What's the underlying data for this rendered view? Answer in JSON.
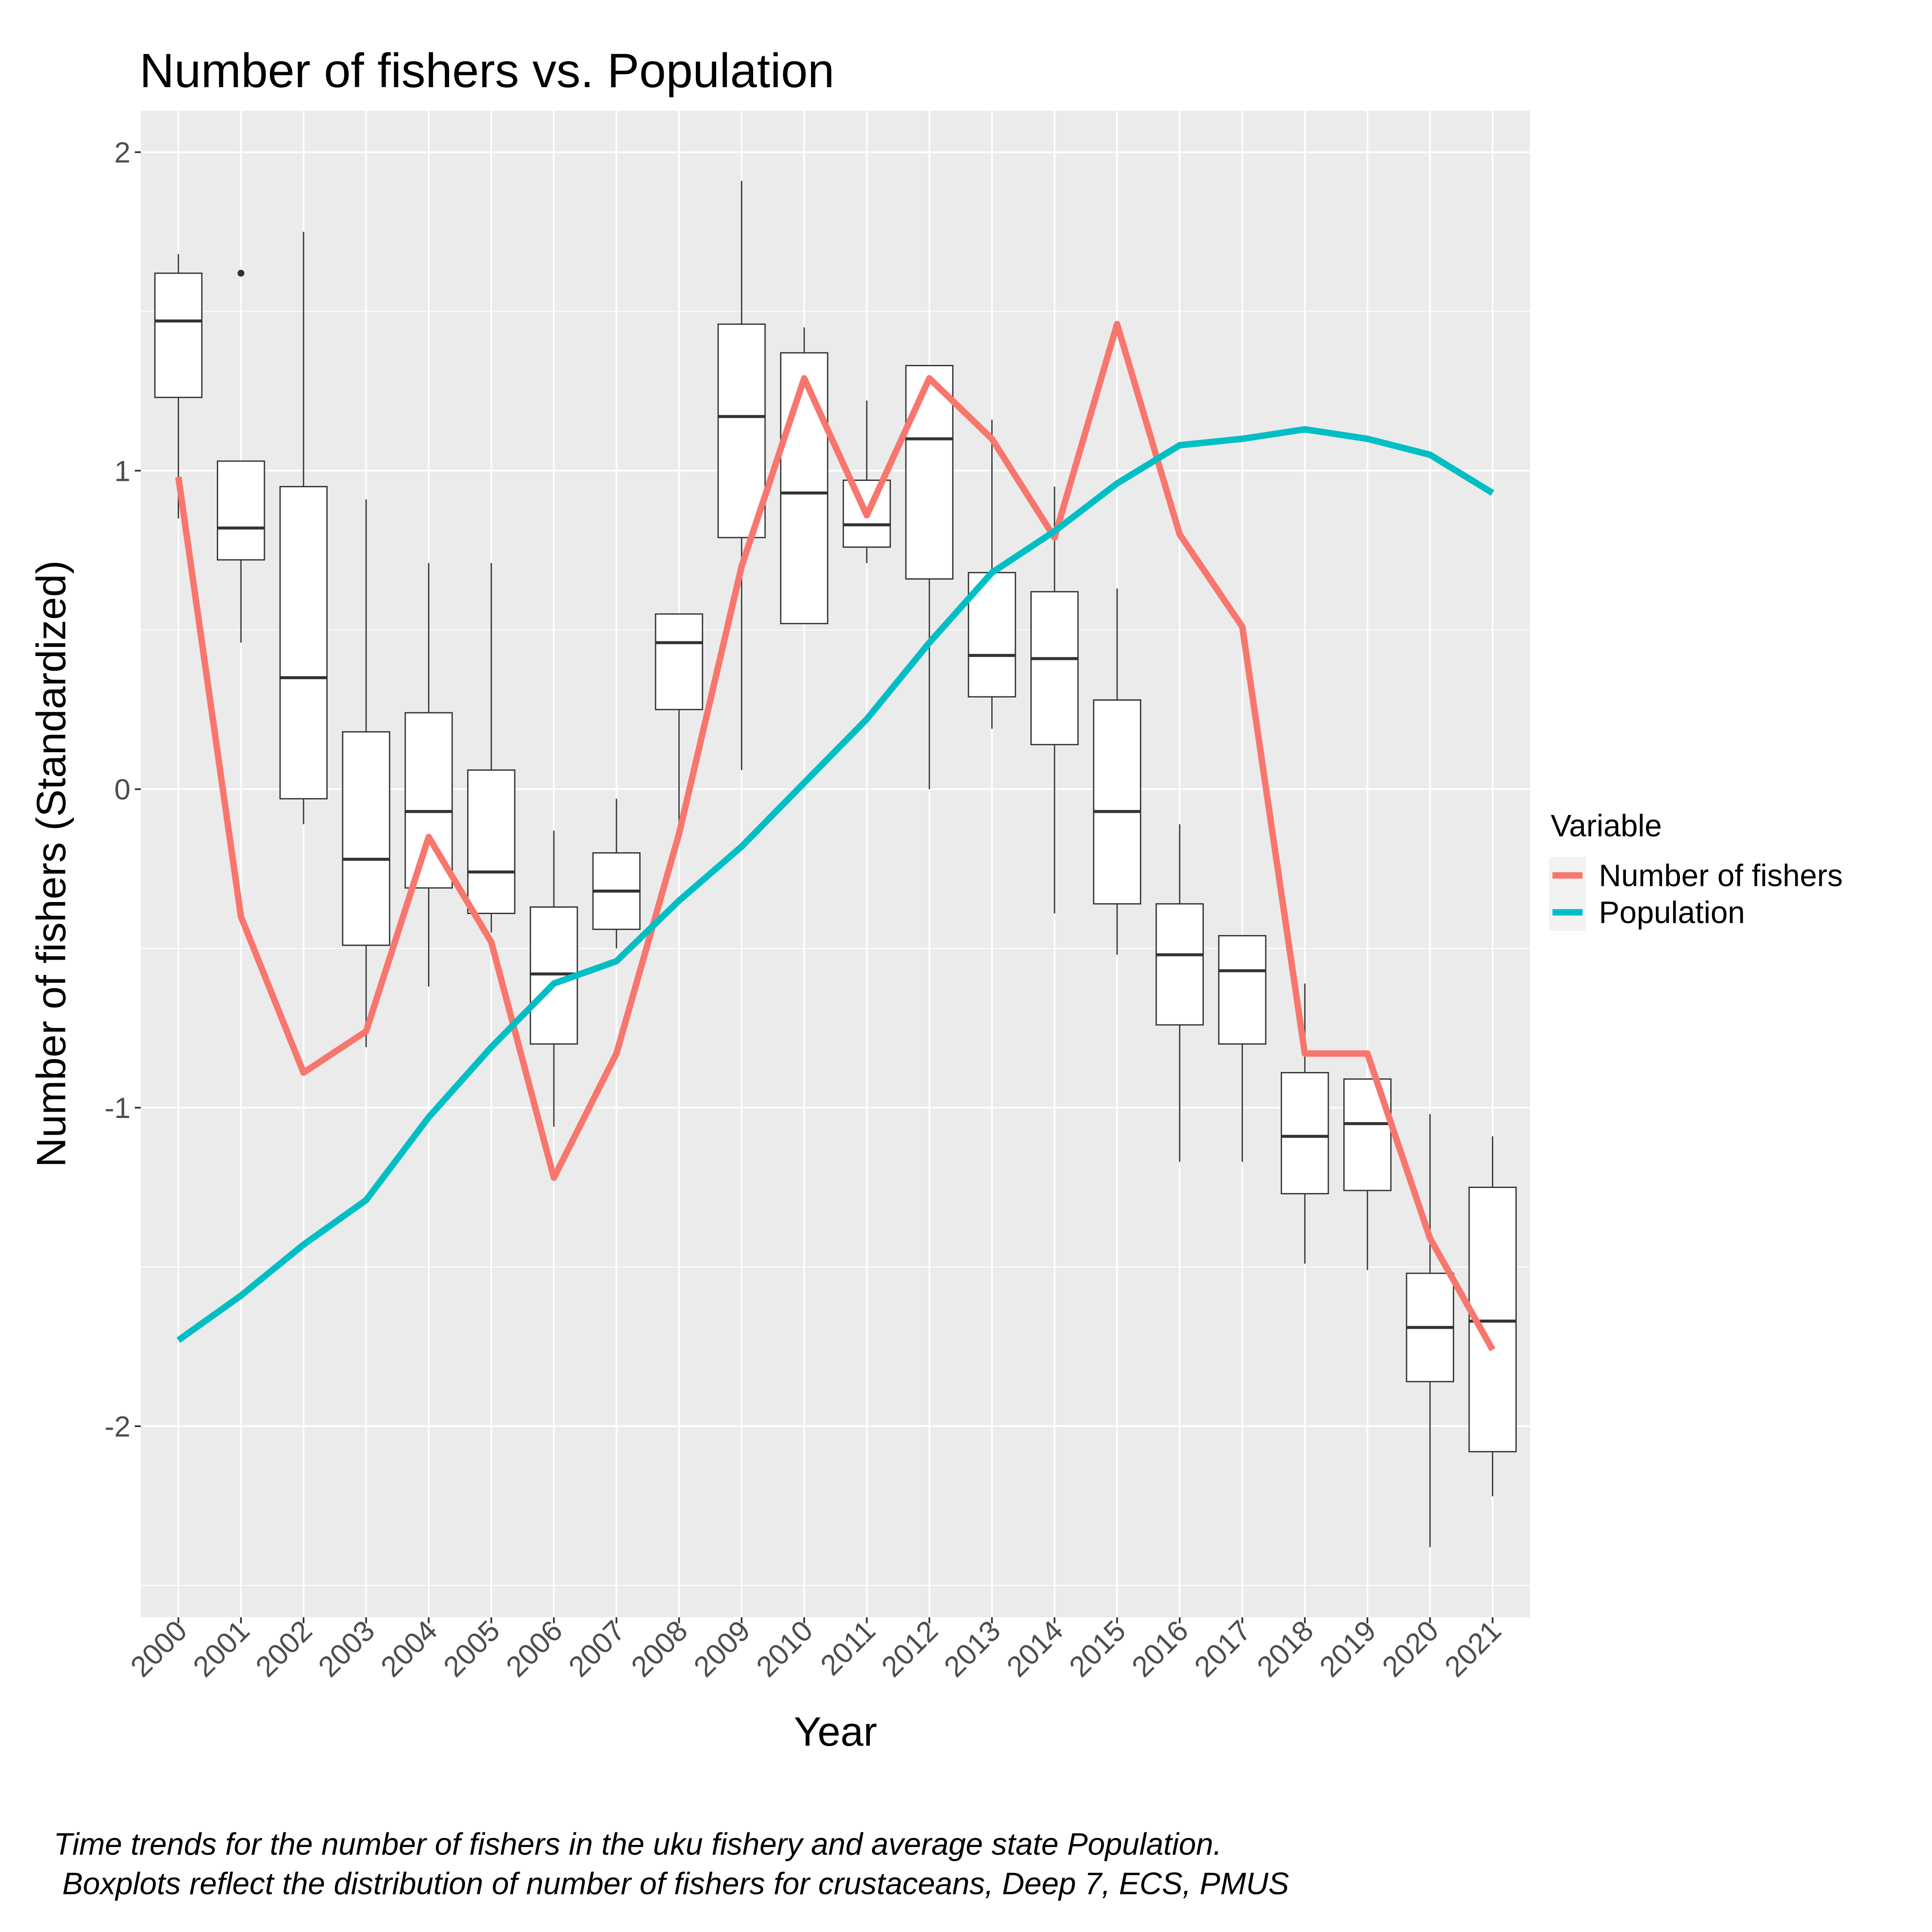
{
  "chart_data": {
    "type": "line",
    "title": "Number of fishers vs. Population",
    "xlabel": "Year",
    "ylabel": "Number of fishers (Standardized)",
    "categories": [
      "2000",
      "2001",
      "2002",
      "2003",
      "2004",
      "2005",
      "2006",
      "2007",
      "2008",
      "2009",
      "2010",
      "2011",
      "2012",
      "2013",
      "2014",
      "2015",
      "2016",
      "2017",
      "2018",
      "2019",
      "2020",
      "2021"
    ],
    "ylim": [
      -2.6,
      2.13
    ],
    "yticks": [
      -2,
      -1,
      0,
      1,
      2
    ],
    "ytick_labels": [
      "-2",
      "-1",
      "0",
      "1",
      "2"
    ],
    "grid": true,
    "legend": {
      "title": "Variable",
      "position": "right"
    },
    "series": [
      {
        "name": "Number of fishers",
        "color": "#F8766D",
        "values": [
          0.98,
          -0.4,
          -0.89,
          -0.76,
          -0.15,
          -0.48,
          -1.22,
          -0.83,
          -0.14,
          0.7,
          1.29,
          0.86,
          1.29,
          1.1,
          0.79,
          1.46,
          0.8,
          0.51,
          -0.83,
          -0.83,
          -1.41,
          -1.76
        ]
      },
      {
        "name": "Population",
        "color": "#00BFC4",
        "values": [
          -1.73,
          -1.59,
          -1.43,
          -1.29,
          -1.03,
          -0.81,
          -0.61,
          -0.54,
          -0.35,
          -0.18,
          0.02,
          0.22,
          0.46,
          0.68,
          0.81,
          0.96,
          1.08,
          1.1,
          1.13,
          1.1,
          1.05,
          0.93
        ]
      }
    ],
    "boxplots": [
      {
        "x": "2000",
        "min": 0.85,
        "q1": 1.23,
        "median": 1.47,
        "q3": 1.62,
        "max": 1.68,
        "outliers": []
      },
      {
        "x": "2001",
        "min": 0.46,
        "q1": 0.72,
        "median": 0.82,
        "q3": 1.03,
        "max": 1.03,
        "outliers": [
          1.62
        ]
      },
      {
        "x": "2002",
        "min": -0.11,
        "q1": -0.03,
        "median": 0.35,
        "q3": 0.95,
        "max": 1.75,
        "outliers": []
      },
      {
        "x": "2003",
        "min": -0.81,
        "q1": -0.49,
        "median": -0.22,
        "q3": 0.18,
        "max": 0.91,
        "outliers": []
      },
      {
        "x": "2004",
        "min": -0.62,
        "q1": -0.31,
        "median": -0.07,
        "q3": 0.24,
        "max": 0.71,
        "outliers": []
      },
      {
        "x": "2005",
        "min": -0.45,
        "q1": -0.39,
        "median": -0.26,
        "q3": 0.06,
        "max": 0.71,
        "outliers": []
      },
      {
        "x": "2006",
        "min": -1.06,
        "q1": -0.8,
        "median": -0.58,
        "q3": -0.37,
        "max": -0.13,
        "outliers": []
      },
      {
        "x": "2007",
        "min": -0.5,
        "q1": -0.44,
        "median": -0.32,
        "q3": -0.2,
        "max": -0.03,
        "outliers": []
      },
      {
        "x": "2008",
        "min": -0.14,
        "q1": 0.25,
        "median": 0.46,
        "q3": 0.55,
        "max": 0.55,
        "outliers": []
      },
      {
        "x": "2009",
        "min": 0.06,
        "q1": 0.79,
        "median": 1.17,
        "q3": 1.46,
        "max": 1.91,
        "outliers": []
      },
      {
        "x": "2010",
        "min": 0.52,
        "q1": 0.52,
        "median": 0.93,
        "q3": 1.37,
        "max": 1.45,
        "outliers": []
      },
      {
        "x": "2011",
        "min": 0.71,
        "q1": 0.76,
        "median": 0.83,
        "q3": 0.97,
        "max": 1.22,
        "outliers": []
      },
      {
        "x": "2012",
        "min": 0.0,
        "q1": 0.66,
        "median": 1.1,
        "q3": 1.33,
        "max": 1.33,
        "outliers": []
      },
      {
        "x": "2013",
        "min": 0.19,
        "q1": 0.29,
        "median": 0.42,
        "q3": 0.68,
        "max": 1.16,
        "outliers": []
      },
      {
        "x": "2014",
        "min": -0.39,
        "q1": 0.14,
        "median": 0.41,
        "q3": 0.62,
        "max": 0.95,
        "outliers": []
      },
      {
        "x": "2015",
        "min": -0.52,
        "q1": -0.36,
        "median": -0.07,
        "q3": 0.28,
        "max": 0.63,
        "outliers": []
      },
      {
        "x": "2016",
        "min": -1.17,
        "q1": -0.74,
        "median": -0.52,
        "q3": -0.36,
        "max": -0.11,
        "outliers": []
      },
      {
        "x": "2017",
        "min": -1.17,
        "q1": -0.8,
        "median": -0.57,
        "q3": -0.46,
        "max": -0.46,
        "outliers": []
      },
      {
        "x": "2018",
        "min": -1.49,
        "q1": -1.27,
        "median": -1.09,
        "q3": -0.89,
        "max": -0.61,
        "outliers": []
      },
      {
        "x": "2019",
        "min": -1.51,
        "q1": -1.26,
        "median": -1.05,
        "q3": -0.91,
        "max": -0.91,
        "outliers": []
      },
      {
        "x": "2020",
        "min": -2.38,
        "q1": -1.86,
        "median": -1.69,
        "q3": -1.52,
        "max": -1.02,
        "outliers": []
      },
      {
        "x": "2021",
        "min": -2.22,
        "q1": -2.08,
        "median": -1.67,
        "q3": -1.25,
        "max": -1.09,
        "outliers": []
      }
    ],
    "caption": [
      "Time trends for the number of fishers in the uku fishery and average state Population.",
      " Boxplots reflect the distribution of number of fishers for crustaceans, Deep 7, ECS, PMUS"
    ]
  }
}
